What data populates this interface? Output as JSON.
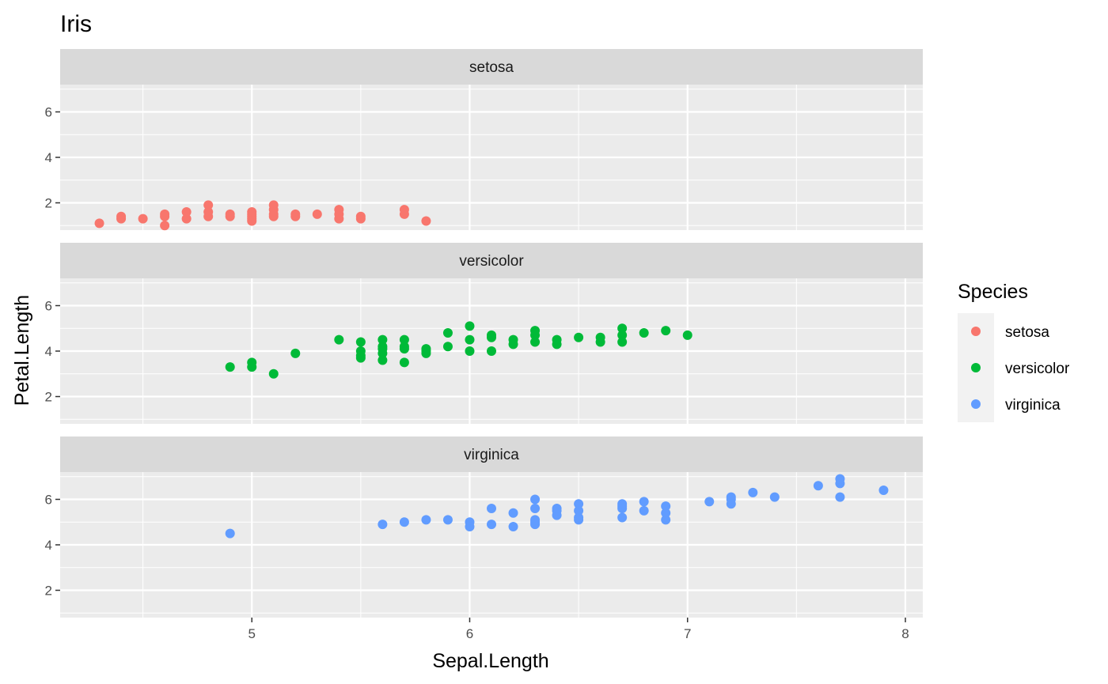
{
  "chart_data": {
    "type": "scatter",
    "title": "Iris",
    "xlabel": "Sepal.Length",
    "ylabel": "Petal.Length",
    "xlim": [
      4.12,
      8.08
    ],
    "ylim": [
      0.8,
      7.2
    ],
    "x_ticks": [
      5,
      6,
      7,
      8
    ],
    "x_tick_labels": [
      "5",
      "6",
      "7",
      "8"
    ],
    "y_ticks": [
      2,
      4,
      6
    ],
    "y_tick_labels": [
      "2",
      "4",
      "6"
    ],
    "grid": true,
    "facet": "Species",
    "legend": {
      "title": "Species",
      "position": "right",
      "entries": [
        "setosa",
        "versicolor",
        "virginica"
      ]
    },
    "series": [
      {
        "name": "setosa",
        "color": "#F8766D",
        "points": [
          [
            4.3,
            1.1
          ],
          [
            4.4,
            1.3
          ],
          [
            4.4,
            1.4
          ],
          [
            4.5,
            1.3
          ],
          [
            4.6,
            1.0
          ],
          [
            4.6,
            1.4
          ],
          [
            4.6,
            1.5
          ],
          [
            4.7,
            1.3
          ],
          [
            4.7,
            1.6
          ],
          [
            4.8,
            1.4
          ],
          [
            4.8,
            1.6
          ],
          [
            4.8,
            1.9
          ],
          [
            4.9,
            1.4
          ],
          [
            4.9,
            1.5
          ],
          [
            5.0,
            1.2
          ],
          [
            5.0,
            1.3
          ],
          [
            5.0,
            1.4
          ],
          [
            5.0,
            1.5
          ],
          [
            5.0,
            1.6
          ],
          [
            5.1,
            1.4
          ],
          [
            5.1,
            1.5
          ],
          [
            5.1,
            1.7
          ],
          [
            5.1,
            1.9
          ],
          [
            5.2,
            1.4
          ],
          [
            5.2,
            1.5
          ],
          [
            5.3,
            1.5
          ],
          [
            5.4,
            1.3
          ],
          [
            5.4,
            1.5
          ],
          [
            5.4,
            1.7
          ],
          [
            5.5,
            1.3
          ],
          [
            5.5,
            1.4
          ],
          [
            5.7,
            1.5
          ],
          [
            5.7,
            1.7
          ],
          [
            5.8,
            1.2
          ]
        ]
      },
      {
        "name": "versicolor",
        "color": "#00BA38",
        "points": [
          [
            4.9,
            3.3
          ],
          [
            5.0,
            3.3
          ],
          [
            5.0,
            3.5
          ],
          [
            5.1,
            3.0
          ],
          [
            5.2,
            3.9
          ],
          [
            5.4,
            4.5
          ],
          [
            5.5,
            3.7
          ],
          [
            5.5,
            3.8
          ],
          [
            5.5,
            4.0
          ],
          [
            5.5,
            4.4
          ],
          [
            5.6,
            3.6
          ],
          [
            5.6,
            3.9
          ],
          [
            5.6,
            4.1
          ],
          [
            5.6,
            4.2
          ],
          [
            5.6,
            4.5
          ],
          [
            5.7,
            3.5
          ],
          [
            5.7,
            4.1
          ],
          [
            5.7,
            4.2
          ],
          [
            5.7,
            4.5
          ],
          [
            5.8,
            3.9
          ],
          [
            5.8,
            4.0
          ],
          [
            5.8,
            4.1
          ],
          [
            5.9,
            4.2
          ],
          [
            5.9,
            4.8
          ],
          [
            6.0,
            4.0
          ],
          [
            6.0,
            4.5
          ],
          [
            6.0,
            5.1
          ],
          [
            6.1,
            4.0
          ],
          [
            6.1,
            4.6
          ],
          [
            6.1,
            4.7
          ],
          [
            6.2,
            4.3
          ],
          [
            6.2,
            4.5
          ],
          [
            6.3,
            4.4
          ],
          [
            6.3,
            4.7
          ],
          [
            6.3,
            4.9
          ],
          [
            6.4,
            4.3
          ],
          [
            6.4,
            4.5
          ],
          [
            6.5,
            4.6
          ],
          [
            6.6,
            4.4
          ],
          [
            6.6,
            4.6
          ],
          [
            6.7,
            4.4
          ],
          [
            6.7,
            4.7
          ],
          [
            6.7,
            5.0
          ],
          [
            6.8,
            4.8
          ],
          [
            6.9,
            4.9
          ],
          [
            7.0,
            4.7
          ]
        ]
      },
      {
        "name": "virginica",
        "color": "#619CFF",
        "points": [
          [
            4.9,
            4.5
          ],
          [
            5.6,
            4.9
          ],
          [
            5.7,
            5.0
          ],
          [
            5.8,
            5.1
          ],
          [
            5.9,
            5.1
          ],
          [
            6.0,
            4.8
          ],
          [
            6.0,
            5.0
          ],
          [
            6.1,
            4.9
          ],
          [
            6.1,
            5.6
          ],
          [
            6.2,
            4.8
          ],
          [
            6.2,
            5.4
          ],
          [
            6.3,
            4.9
          ],
          [
            6.3,
            5.0
          ],
          [
            6.3,
            5.1
          ],
          [
            6.3,
            5.6
          ],
          [
            6.3,
            6.0
          ],
          [
            6.4,
            5.3
          ],
          [
            6.4,
            5.5
          ],
          [
            6.4,
            5.6
          ],
          [
            6.5,
            5.1
          ],
          [
            6.5,
            5.2
          ],
          [
            6.5,
            5.5
          ],
          [
            6.5,
            5.8
          ],
          [
            6.7,
            5.2
          ],
          [
            6.7,
            5.6
          ],
          [
            6.7,
            5.7
          ],
          [
            6.7,
            5.8
          ],
          [
            6.8,
            5.5
          ],
          [
            6.8,
            5.9
          ],
          [
            6.9,
            5.1
          ],
          [
            6.9,
            5.4
          ],
          [
            6.9,
            5.7
          ],
          [
            7.1,
            5.9
          ],
          [
            7.2,
            5.8
          ],
          [
            7.2,
            6.0
          ],
          [
            7.2,
            6.1
          ],
          [
            7.3,
            6.3
          ],
          [
            7.4,
            6.1
          ],
          [
            7.6,
            6.6
          ],
          [
            7.7,
            6.1
          ],
          [
            7.7,
            6.7
          ],
          [
            7.7,
            6.9
          ],
          [
            7.9,
            6.4
          ]
        ]
      }
    ]
  }
}
